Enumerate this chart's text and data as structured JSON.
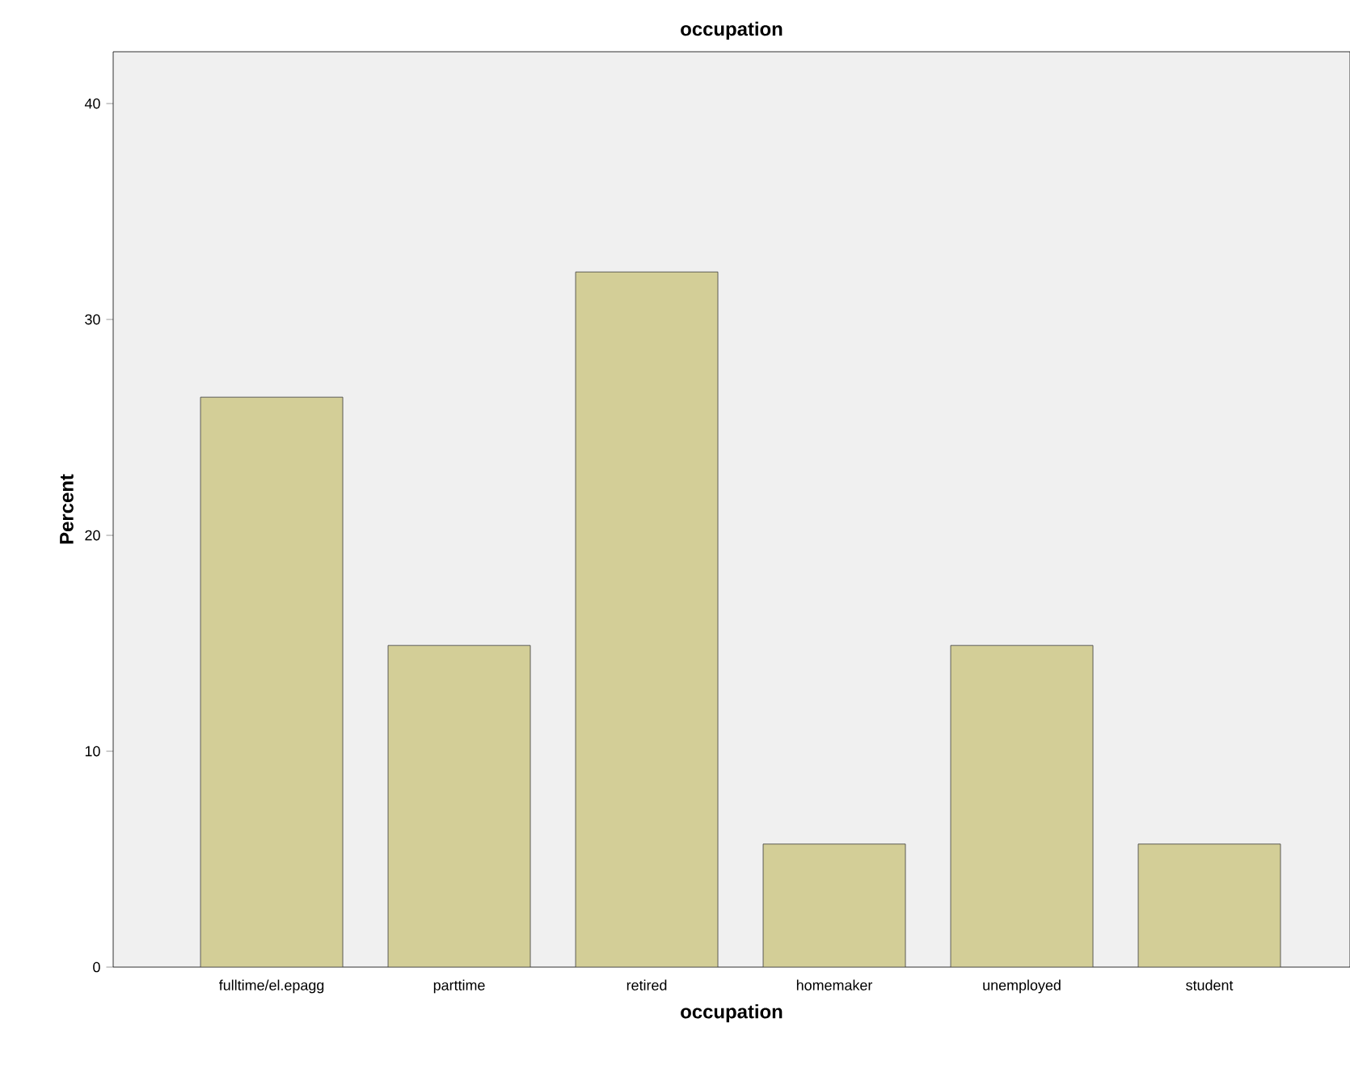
{
  "chart_data": {
    "type": "bar",
    "title": "occupation",
    "xlabel": "occupation",
    "ylabel": "Percent",
    "categories": [
      "fulltime/el.epagg",
      "parttime",
      "retired",
      "homemaker",
      "unemployed",
      "student"
    ],
    "values": [
      26.4,
      14.9,
      32.2,
      5.7,
      14.9,
      5.7
    ],
    "color": "#d3ce97",
    "ylim": [
      0,
      42.4
    ],
    "yticks": [
      0,
      10,
      20,
      30,
      40
    ],
    "grid": false
  }
}
